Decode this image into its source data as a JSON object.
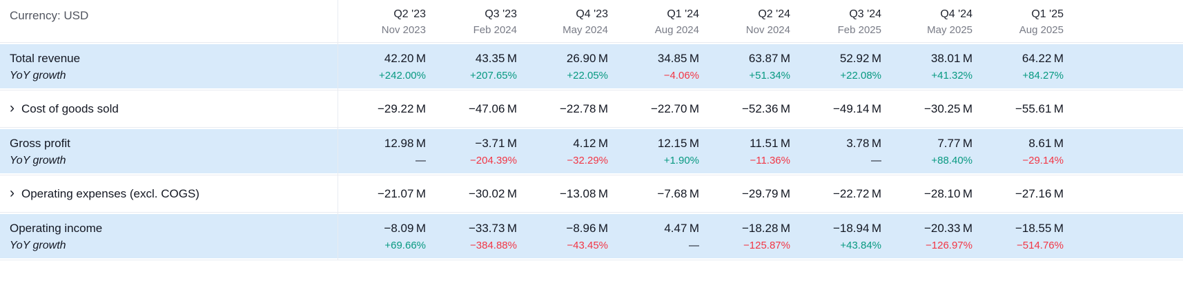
{
  "header": {
    "currency_label": "Currency: USD"
  },
  "icons": {
    "expand_chevron": "›"
  },
  "colors": {
    "positive": "#089981",
    "negative": "#f23645",
    "row_highlight": "#d8eafa"
  },
  "columns": [
    {
      "quarter": "Q2 '23",
      "date": "Nov 2023"
    },
    {
      "quarter": "Q3 '23",
      "date": "Feb 2024"
    },
    {
      "quarter": "Q4 '23",
      "date": "May 2024"
    },
    {
      "quarter": "Q1 '24",
      "date": "Aug 2024"
    },
    {
      "quarter": "Q2 '24",
      "date": "Nov 2024"
    },
    {
      "quarter": "Q3 '24",
      "date": "Feb 2025"
    },
    {
      "quarter": "Q4 '24",
      "date": "May 2025"
    },
    {
      "quarter": "Q1 '25",
      "date": "Aug 2025"
    }
  ],
  "rows": [
    {
      "id": "total-revenue",
      "label": "Total revenue",
      "sub_label": "YoY growth",
      "highlighted": true,
      "expandable": false,
      "values": [
        "42.20 M",
        "43.35 M",
        "26.90 M",
        "34.85 M",
        "63.87 M",
        "52.92 M",
        "38.01 M",
        "64.22 M"
      ],
      "growth": [
        {
          "text": "+242.00%",
          "tone": "pos"
        },
        {
          "text": "+207.65%",
          "tone": "pos"
        },
        {
          "text": "+22.05%",
          "tone": "pos"
        },
        {
          "text": "−4.06%",
          "tone": "neg"
        },
        {
          "text": "+51.34%",
          "tone": "pos"
        },
        {
          "text": "+22.08%",
          "tone": "pos"
        },
        {
          "text": "+41.32%",
          "tone": "pos"
        },
        {
          "text": "+84.27%",
          "tone": "pos"
        }
      ]
    },
    {
      "id": "cost-of-goods-sold",
      "label": "Cost of goods sold",
      "sub_label": null,
      "highlighted": false,
      "expandable": true,
      "values": [
        "−29.22 M",
        "−47.06 M",
        "−22.78 M",
        "−22.70 M",
        "−52.36 M",
        "−49.14 M",
        "−30.25 M",
        "−55.61 M"
      ],
      "growth": null
    },
    {
      "id": "gross-profit",
      "label": "Gross profit",
      "sub_label": "YoY growth",
      "highlighted": true,
      "expandable": false,
      "values": [
        "12.98 M",
        "−3.71 M",
        "4.12 M",
        "12.15 M",
        "11.51 M",
        "3.78 M",
        "7.77 M",
        "8.61 M"
      ],
      "growth": [
        {
          "text": "—",
          "tone": "neutral"
        },
        {
          "text": "−204.39%",
          "tone": "neg"
        },
        {
          "text": "−32.29%",
          "tone": "neg"
        },
        {
          "text": "+1.90%",
          "tone": "pos"
        },
        {
          "text": "−11.36%",
          "tone": "neg"
        },
        {
          "text": "—",
          "tone": "neutral"
        },
        {
          "text": "+88.40%",
          "tone": "pos"
        },
        {
          "text": "−29.14%",
          "tone": "neg"
        }
      ]
    },
    {
      "id": "operating-expenses",
      "label": "Operating expenses (excl. COGS)",
      "sub_label": null,
      "highlighted": false,
      "expandable": true,
      "values": [
        "−21.07 M",
        "−30.02 M",
        "−13.08 M",
        "−7.68 M",
        "−29.79 M",
        "−22.72 M",
        "−28.10 M",
        "−27.16 M"
      ],
      "growth": null
    },
    {
      "id": "operating-income",
      "label": "Operating income",
      "sub_label": "YoY growth",
      "highlighted": true,
      "expandable": false,
      "values": [
        "−8.09 M",
        "−33.73 M",
        "−8.96 M",
        "4.47 M",
        "−18.28 M",
        "−18.94 M",
        "−20.33 M",
        "−18.55 M"
      ],
      "growth": [
        {
          "text": "+69.66%",
          "tone": "pos"
        },
        {
          "text": "−384.88%",
          "tone": "neg"
        },
        {
          "text": "−43.45%",
          "tone": "neg"
        },
        {
          "text": "—",
          "tone": "neutral"
        },
        {
          "text": "−125.87%",
          "tone": "neg"
        },
        {
          "text": "+43.84%",
          "tone": "pos"
        },
        {
          "text": "−126.97%",
          "tone": "neg"
        },
        {
          "text": "−514.76%",
          "tone": "neg"
        }
      ]
    }
  ]
}
